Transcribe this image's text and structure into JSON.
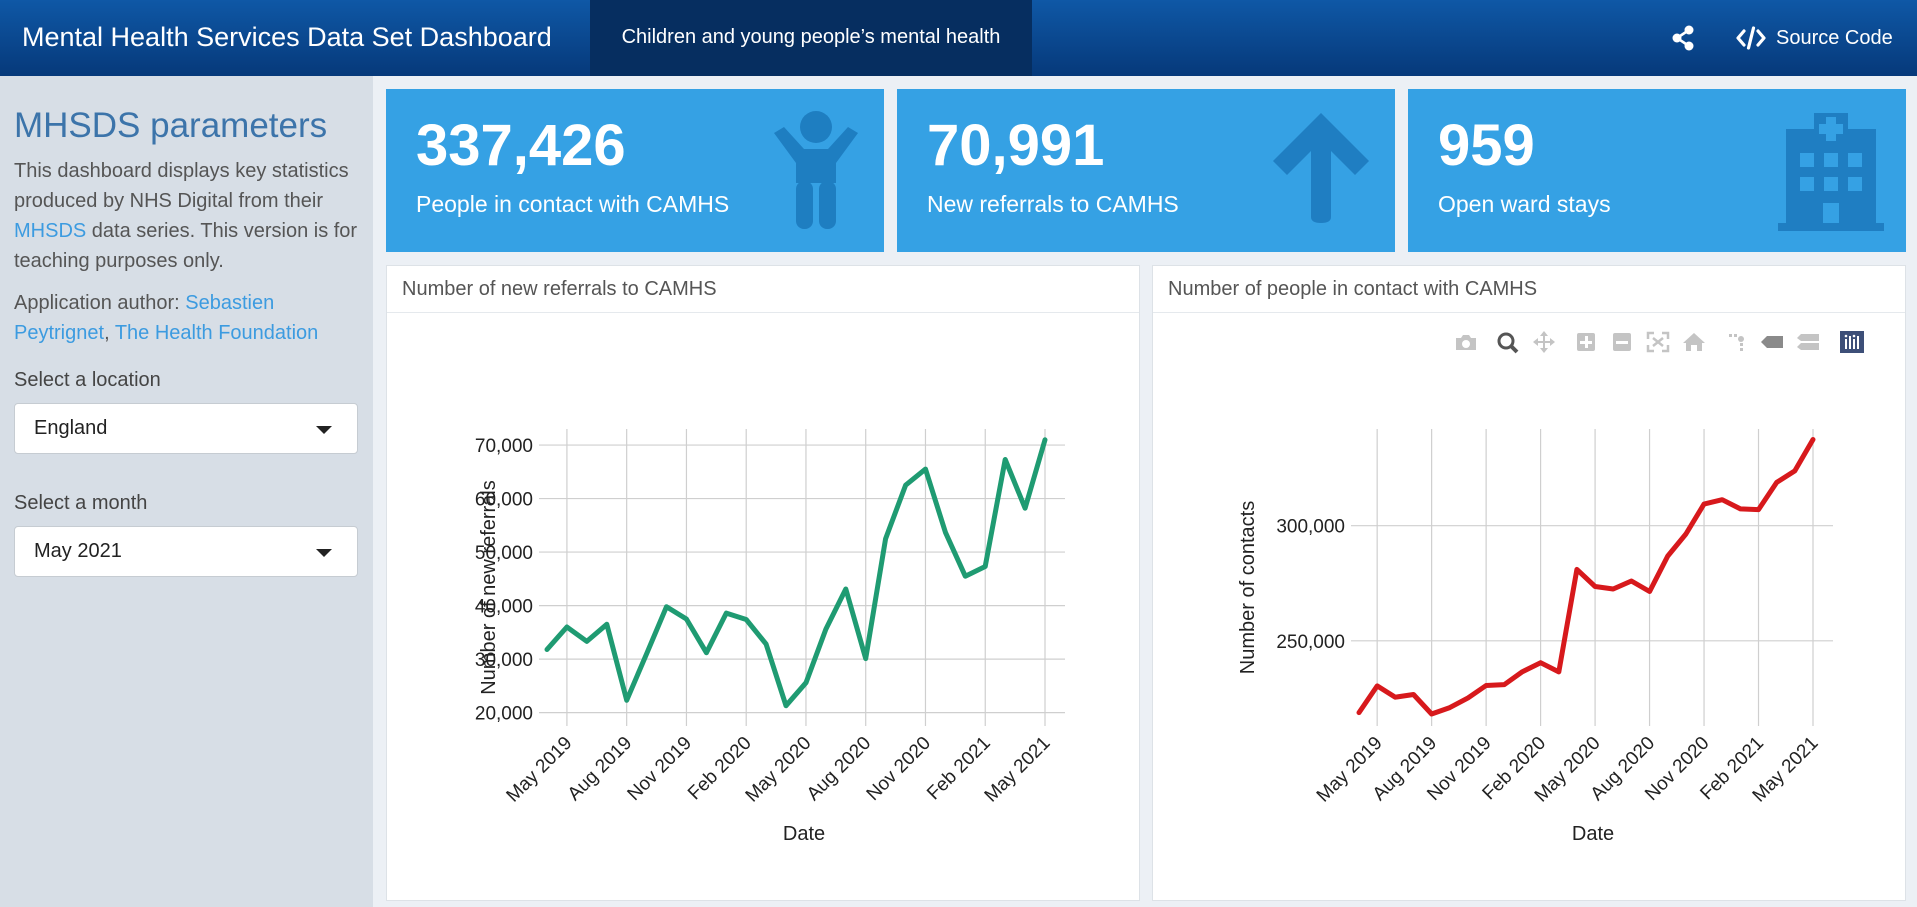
{
  "header": {
    "title": "Mental Health Services Data Set Dashboard",
    "tab_label": "Children and young people’s mental health",
    "source_code_label": "Source Code"
  },
  "sidebar": {
    "title": "MHSDS parameters",
    "desc_pre": "This dashboard displays key statistics produced by NHS Digital from their ",
    "desc_link": "MHSDS",
    "desc_post": " data series. This version is for teaching purposes only.",
    "author_pre": "Application author: ",
    "author_link": "Sebastien Peytrignet",
    "author_sep": ", ",
    "org_link": "The Health Foundation",
    "location_label": "Select a location",
    "location_value": "England",
    "month_label": "Select a month",
    "month_value": "May 2021"
  },
  "value_boxes": [
    {
      "value": "337,426",
      "label": "People in contact with CAMHS",
      "icon": "child-icon"
    },
    {
      "value": "70,991",
      "label": "New referrals to CAMHS",
      "icon": "arrow-up-icon"
    },
    {
      "value": "959",
      "label": "Open ward stays",
      "icon": "hospital-icon"
    }
  ],
  "colors": {
    "referrals_line": "#1f9b72",
    "contacts_line": "#d7191c",
    "value_box": "#35a1e4"
  },
  "chart_data": [
    {
      "type": "line",
      "title": "Number of new referrals to CAMHS",
      "xlabel": "Date",
      "ylabel": "Number of new referrals",
      "x": [
        "Apr 2019",
        "May 2019",
        "Jun 2019",
        "Jul 2019",
        "Aug 2019",
        "Sep 2019",
        "Oct 2019",
        "Nov 2019",
        "Dec 2019",
        "Jan 2020",
        "Feb 2020",
        "Mar 2020",
        "Apr 2020",
        "May 2020",
        "Jun 2020",
        "Jul 2020",
        "Aug 2020",
        "Sep 2020",
        "Oct 2020",
        "Nov 2020",
        "Dec 2020",
        "Jan 2021",
        "Feb 2021",
        "Mar 2021",
        "Apr 2021",
        "May 2021"
      ],
      "values": [
        31800,
        36000,
        33300,
        36500,
        22300,
        31000,
        39800,
        37500,
        31200,
        38600,
        37400,
        32800,
        21300,
        25600,
        35600,
        43100,
        30100,
        52500,
        62500,
        65500,
        53700,
        45500,
        47300,
        67300,
        58200,
        70991
      ],
      "xticks": [
        "May 2019",
        "Aug 2019",
        "Nov 2019",
        "Feb 2020",
        "May 2020",
        "Aug 2020",
        "Nov 2020",
        "Feb 2021",
        "May 2021"
      ],
      "yticks": [
        20000,
        30000,
        40000,
        50000,
        60000,
        70000
      ],
      "ytick_labels": [
        "20,000",
        "30,000",
        "40,000",
        "50,000",
        "60,000",
        "70,000"
      ],
      "ylim": [
        17500,
        73000
      ],
      "grid": true
    },
    {
      "type": "line",
      "title": "Number of people in contact with CAMHS",
      "xlabel": "Date",
      "ylabel": "Number of contacts",
      "x": [
        "Apr 2019",
        "May 2019",
        "Jun 2019",
        "Jul 2019",
        "Aug 2019",
        "Sep 2019",
        "Oct 2019",
        "Nov 2019",
        "Dec 2019",
        "Jan 2020",
        "Feb 2020",
        "Mar 2020",
        "Apr 2020",
        "May 2020",
        "Jun 2020",
        "Jul 2020",
        "Aug 2020",
        "Sep 2020",
        "Oct 2020",
        "Nov 2020",
        "Dec 2020",
        "Jan 2021",
        "Feb 2021",
        "Mar 2021",
        "Apr 2021",
        "May 2021"
      ],
      "values": [
        218800,
        230400,
        225500,
        226700,
        218200,
        221000,
        225200,
        230600,
        231000,
        236600,
        240500,
        236500,
        281000,
        273600,
        272500,
        276000,
        271400,
        286800,
        296400,
        309400,
        311300,
        307300,
        307000,
        318800,
        323800,
        337426
      ],
      "xticks": [
        "May 2019",
        "Aug 2019",
        "Nov 2019",
        "Feb 2020",
        "May 2020",
        "Aug 2020",
        "Nov 2020",
        "Feb 2021",
        "May 2021"
      ],
      "yticks": [
        250000,
        300000
      ],
      "ytick_labels": [
        "250,000",
        "300,000"
      ],
      "ylim": [
        213000,
        342000
      ],
      "grid": true
    }
  ]
}
